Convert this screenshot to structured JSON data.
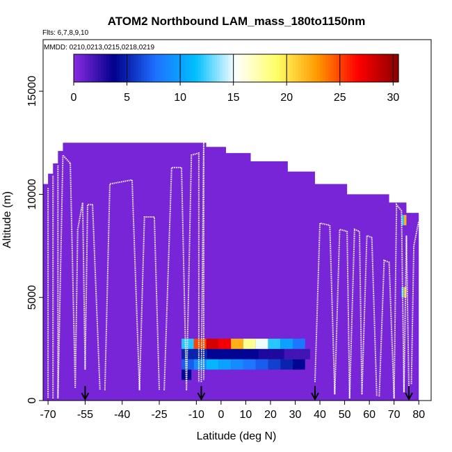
{
  "chart_data": {
    "type": "heatmap",
    "title": "ATOM2 Northbound LAM_mass_180to1150nm",
    "subtitle_flights": "Flts: 6,7,8,9,10",
    "subtitle_dates": "MMDD: 0210,0213,0215,0218,0219",
    "xlabel": "Latitude (deg N)",
    "ylabel": "Altitude (m)",
    "xlim": [
      -72,
      85
    ],
    "ylim": [
      0,
      17500
    ],
    "x_ticks": [
      -70,
      -55,
      -40,
      -25,
      -10,
      0,
      10,
      20,
      30,
      40,
      50,
      60,
      70,
      80
    ],
    "x_tick_labels": [
      "-70",
      "-55",
      "-40",
      "-25",
      "-10",
      "0",
      "10",
      "20",
      "30",
      "40",
      "50",
      "60",
      "70",
      "80"
    ],
    "y_ticks": [
      0,
      5000,
      10000,
      15000
    ],
    "y_tick_labels": [
      "0",
      "5000",
      "10000",
      "15000"
    ],
    "colorbar": {
      "min": 0,
      "max": 30.5,
      "ticks": [
        0,
        5,
        10,
        15,
        20,
        25,
        30
      ],
      "tick_labels": [
        "0",
        "5",
        "10",
        "15",
        "20",
        "25",
        "30"
      ],
      "colors": [
        "#8a2be2",
        "#00008b",
        "#1e6fff",
        "#00bfff",
        "#ffffff",
        "#ffff66",
        "#ff9900",
        "#ff0000",
        "#8b0000"
      ]
    },
    "background_value": 0.5,
    "envelope_top_km": [
      [
        -72,
        10.5
      ],
      [
        -70,
        11.0
      ],
      [
        -68,
        11.5
      ],
      [
        -66,
        12.1
      ],
      [
        -64,
        12.5
      ],
      [
        -40,
        12.5
      ],
      [
        -10,
        12.5
      ],
      [
        -6,
        12.3
      ],
      [
        2,
        12.0
      ],
      [
        12,
        11.6
      ],
      [
        27,
        11.1
      ],
      [
        38,
        10.5
      ],
      [
        51,
        10.0
      ],
      [
        68,
        9.6
      ],
      [
        75,
        9.1
      ],
      [
        80,
        8.9
      ]
    ],
    "hotspots": [
      {
        "lat_from": -16,
        "lat_to": 34,
        "alt_from": 2500,
        "alt_to": 3000,
        "value_profile": [
          12,
          25,
          28,
          27,
          22,
          18,
          15,
          12,
          10,
          8
        ]
      },
      {
        "lat_from": -16,
        "lat_to": 36,
        "alt_from": 2000,
        "alt_to": 2500,
        "value_profile": [
          5,
          5,
          4,
          4,
          4,
          4,
          3,
          3,
          2,
          2
        ]
      },
      {
        "lat_from": -16,
        "lat_to": 34,
        "alt_from": 1500,
        "alt_to": 2000,
        "value_profile": [
          7,
          9,
          11,
          10,
          9,
          8,
          7,
          6,
          5,
          4
        ]
      },
      {
        "lat_from": -16,
        "lat_to": -12,
        "alt_from": 1000,
        "alt_to": 1500,
        "value_profile": [
          4,
          4
        ]
      },
      {
        "lat_from": 73,
        "lat_to": 75,
        "alt_from": 8500,
        "alt_to": 9000,
        "value_profile": [
          12,
          22
        ]
      },
      {
        "lat_from": 73,
        "lat_to": 75,
        "alt_from": 5000,
        "alt_to": 5500,
        "value_profile": [
          12,
          22
        ]
      }
    ],
    "flight_profiles": [
      [
        [
          -70,
          10300
        ],
        [
          -70,
          100
        ]
      ],
      [
        [
          -68,
          10900
        ],
        [
          -68,
          100
        ]
      ],
      [
        [
          -66,
          11400
        ],
        [
          -66,
          100
        ],
        [
          -64,
          11900
        ],
        [
          -61,
          11500
        ]
      ],
      [
        [
          -61,
          11500
        ],
        [
          -59,
          600
        ],
        [
          -58,
          8300
        ],
        [
          -56,
          9600
        ],
        [
          -55,
          1500
        ]
      ],
      [
        [
          -55,
          1500
        ],
        [
          -54,
          9500
        ],
        [
          -52,
          9500
        ]
      ],
      [
        [
          -52,
          9500
        ],
        [
          -49,
          500
        ]
      ],
      [
        [
          -47,
          500
        ],
        [
          -45,
          10500
        ],
        [
          -36,
          10700
        ],
        [
          -33,
          500
        ]
      ],
      [
        [
          -33,
          500
        ],
        [
          -31,
          8900
        ],
        [
          -27,
          8900
        ],
        [
          -25,
          500
        ]
      ],
      [
        [
          -23,
          500
        ],
        [
          -20,
          11300
        ],
        [
          -16,
          11300
        ],
        [
          -14,
          500
        ]
      ],
      [
        [
          -14,
          500
        ],
        [
          -12,
          11900
        ],
        [
          -9,
          12000
        ],
        [
          -9,
          900
        ]
      ],
      [
        [
          -8,
          900
        ],
        [
          -7,
          12800
        ],
        [
          -7,
          1000
        ]
      ],
      [
        [
          38,
          900
        ],
        [
          40,
          8600
        ],
        [
          44,
          8500
        ],
        [
          46,
          300
        ]
      ],
      [
        [
          46,
          300
        ],
        [
          48,
          8300
        ],
        [
          51,
          8200
        ],
        [
          52,
          100
        ]
      ],
      [
        [
          52,
          100
        ],
        [
          54,
          8300
        ],
        [
          56,
          8200
        ],
        [
          57,
          300
        ]
      ],
      [
        [
          57,
          300
        ],
        [
          59,
          8000
        ],
        [
          61,
          7900
        ],
        [
          63,
          200
        ]
      ],
      [
        [
          64,
          200
        ],
        [
          66,
          6800
        ],
        [
          68,
          6700
        ],
        [
          70,
          100
        ]
      ],
      [
        [
          70,
          100
        ],
        [
          71,
          9500
        ],
        [
          73,
          9200
        ],
        [
          74,
          400
        ]
      ],
      [
        [
          74,
          400
        ],
        [
          75,
          8000
        ],
        [
          76,
          500
        ]
      ],
      [
        [
          77,
          800
        ],
        [
          78,
          7500
        ],
        [
          80,
          8700
        ]
      ]
    ],
    "arrow_markers_lat": [
      -55,
      -8,
      38,
      76
    ]
  }
}
